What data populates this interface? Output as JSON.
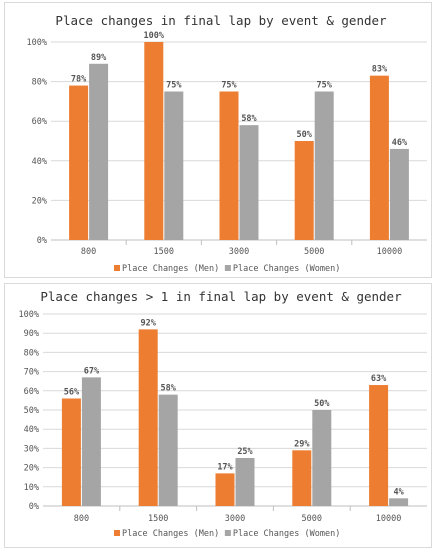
{
  "chart_data": [
    {
      "type": "bar",
      "title": "Place changes in final lap by event & gender",
      "categories": [
        "800",
        "1500",
        "3000",
        "5000",
        "10000"
      ],
      "ylim": [
        0,
        100
      ],
      "yticks": [
        "0%",
        "20%",
        "40%",
        "60%",
        "80%",
        "100%"
      ],
      "ytick_values": [
        0,
        20,
        40,
        60,
        80,
        100
      ],
      "grid": true,
      "legend_position": "bottom",
      "series": [
        {
          "name": "Place Changes (Men)",
          "color": "#ed7d31",
          "values": [
            78,
            100,
            75,
            50,
            83
          ],
          "labels": [
            "78%",
            "100%",
            "75%",
            "50%",
            "83%"
          ]
        },
        {
          "name": "Place Changes (Women)",
          "color": "#a5a5a5",
          "values": [
            89,
            75,
            58,
            75,
            46
          ],
          "labels": [
            "89%",
            "75%",
            "58%",
            "75%",
            "46%"
          ]
        }
      ]
    },
    {
      "type": "bar",
      "title": "Place changes > 1 in final lap by event & gender",
      "categories": [
        "800",
        "1500",
        "3000",
        "5000",
        "10000"
      ],
      "ylim": [
        0,
        100
      ],
      "yticks": [
        "0%",
        "10%",
        "20%",
        "30%",
        "40%",
        "50%",
        "60%",
        "70%",
        "80%",
        "90%",
        "100%"
      ],
      "ytick_values": [
        0,
        10,
        20,
        30,
        40,
        50,
        60,
        70,
        80,
        90,
        100
      ],
      "grid": true,
      "legend_position": "bottom",
      "series": [
        {
          "name": "Place Changes (Men)",
          "color": "#ed7d31",
          "values": [
            56,
            92,
            17,
            29,
            63
          ],
          "labels": [
            "56%",
            "92%",
            "17%",
            "29%",
            "63%"
          ]
        },
        {
          "name": "Place Changes (Women)",
          "color": "#a5a5a5",
          "values": [
            67,
            58,
            25,
            50,
            4
          ],
          "labels": [
            "67%",
            "58%",
            "25%",
            "50%",
            "4%"
          ]
        }
      ]
    }
  ]
}
